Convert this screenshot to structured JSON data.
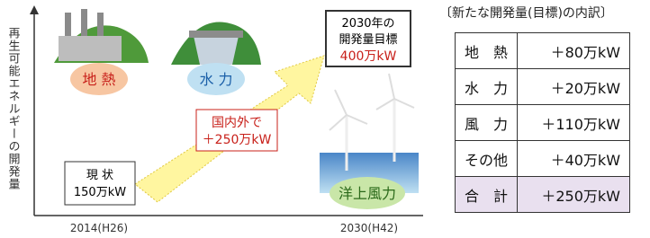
{
  "diagram": {
    "y_axis_label": "再生可能エネルギーの開発量",
    "x_labels": [
      "2014(H26)",
      "2030(H42)"
    ],
    "bubbles": [
      "地 熱",
      "水 力",
      "洋上風力"
    ],
    "current": {
      "lines": [
        "現 状",
        "150万kW"
      ]
    },
    "arrow_label": {
      "lines": [
        "国内外で",
        "＋250万kW"
      ]
    },
    "target": {
      "lines": [
        "2030年の",
        "開発量目標",
        "400万kW"
      ]
    }
  },
  "table": {
    "title": "〔新たな開発量(目標)の内訳〕",
    "rows": [
      [
        "地　熱",
        "＋80万kW"
      ],
      [
        "水　力",
        "＋20万kW"
      ],
      [
        "風　力",
        "＋110万kW"
      ],
      [
        "その他",
        "＋40万kW"
      ],
      [
        "合　計",
        "＋250万kW"
      ]
    ]
  }
}
